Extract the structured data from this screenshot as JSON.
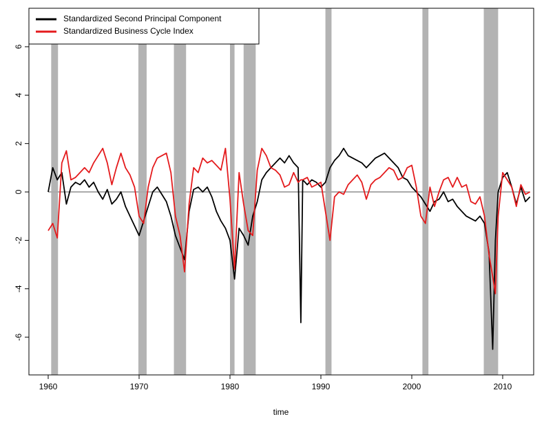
{
  "chart_data": {
    "type": "line",
    "xlabel": "time",
    "xlim": [
      1957.88,
      2013.41
    ],
    "xticks": [
      1960,
      1970,
      1980,
      1990,
      2000,
      2010
    ],
    "ylim": [
      -7.56,
      7.59
    ],
    "yticks": [
      -6,
      -4,
      -2,
      0,
      2,
      4,
      6
    ],
    "reference_line": 0,
    "shaded_periods": [
      [
        1960.33,
        1961.08
      ],
      [
        1969.92,
        1970.83
      ],
      [
        1973.83,
        1975.17
      ],
      [
        1980.0,
        1980.5
      ],
      [
        1981.5,
        1982.83
      ],
      [
        1990.5,
        1991.17
      ],
      [
        2001.17,
        2001.83
      ],
      [
        2007.92,
        2009.5
      ]
    ],
    "shade_color": "#b3b3b3",
    "legend": "top-left",
    "x": [
      1960,
      1960.5,
      1961,
      1961.5,
      1962,
      1962.5,
      1963,
      1963.5,
      1964,
      1964.5,
      1965,
      1965.5,
      1966,
      1966.5,
      1967,
      1967.5,
      1968,
      1968.5,
      1969,
      1969.5,
      1970,
      1970.5,
      1971,
      1971.5,
      1972,
      1972.5,
      1973,
      1973.5,
      1974,
      1974.5,
      1975,
      1975.5,
      1976,
      1976.5,
      1977,
      1977.5,
      1978,
      1978.5,
      1979,
      1979.5,
      1980,
      1980.5,
      1981,
      1981.5,
      1982,
      1982.5,
      1983,
      1983.5,
      1984,
      1984.5,
      1985,
      1985.5,
      1986,
      1986.5,
      1987,
      1987.5,
      1987.8,
      1988,
      1988.5,
      1989,
      1989.5,
      1990,
      1990.5,
      1991,
      1991.5,
      1992,
      1992.5,
      1993,
      1993.5,
      1994,
      1994.5,
      1995,
      1995.5,
      1996,
      1996.5,
      1997,
      1997.5,
      1998,
      1998.5,
      1999,
      1999.5,
      2000,
      2000.5,
      2001,
      2001.5,
      2002,
      2002.5,
      2003,
      2003.5,
      2004,
      2004.5,
      2005,
      2005.5,
      2006,
      2006.5,
      2007,
      2007.5,
      2008,
      2008.5,
      2008.9,
      2009.2,
      2009.5,
      2010,
      2010.5,
      2011,
      2011.5,
      2012,
      2012.5,
      2013
    ],
    "series": [
      {
        "name": "Standardized Second Principal Component",
        "color": "#000000",
        "values": [
          0.0,
          1.0,
          0.5,
          0.8,
          -0.5,
          0.2,
          0.4,
          0.3,
          0.5,
          0.2,
          0.4,
          0.0,
          -0.3,
          0.1,
          -0.5,
          -0.3,
          0.0,
          -0.6,
          -1.0,
          -1.4,
          -1.8,
          -1.2,
          -0.6,
          0.0,
          0.2,
          -0.1,
          -0.4,
          -1.0,
          -1.8,
          -2.3,
          -2.8,
          -0.8,
          0.1,
          0.2,
          0.0,
          0.2,
          -0.2,
          -0.8,
          -1.2,
          -1.5,
          -2.0,
          -3.6,
          -1.5,
          -1.8,
          -2.2,
          -1.0,
          -0.4,
          0.5,
          0.8,
          1.0,
          1.2,
          1.4,
          1.2,
          1.5,
          1.2,
          1.0,
          -5.4,
          0.5,
          0.3,
          0.5,
          0.4,
          0.2,
          0.4,
          1.0,
          1.3,
          1.5,
          1.8,
          1.5,
          1.4,
          1.3,
          1.2,
          1.0,
          1.2,
          1.4,
          1.5,
          1.6,
          1.4,
          1.2,
          1.0,
          0.6,
          0.5,
          0.2,
          0.0,
          -0.2,
          -0.5,
          -0.8,
          -0.4,
          -0.3,
          0.0,
          -0.4,
          -0.3,
          -0.6,
          -0.8,
          -1.0,
          -1.1,
          -1.2,
          -1.0,
          -1.3,
          -2.5,
          -6.5,
          -2.0,
          0.0,
          0.6,
          0.8,
          0.2,
          -0.5,
          0.2,
          -0.4,
          -0.2
        ]
      },
      {
        "name": "Standardized Business Cycle Index",
        "color": "#e41a1c",
        "values": [
          -1.6,
          -1.3,
          -1.9,
          1.2,
          1.7,
          0.5,
          0.6,
          0.8,
          1.0,
          0.8,
          1.2,
          1.5,
          1.8,
          1.2,
          0.3,
          1.0,
          1.6,
          1.0,
          0.7,
          0.2,
          -1.0,
          -1.3,
          0.2,
          1.0,
          1.4,
          1.5,
          1.6,
          0.8,
          -1.0,
          -1.8,
          -3.3,
          -0.5,
          1.0,
          0.8,
          1.4,
          1.2,
          1.3,
          1.1,
          0.9,
          1.8,
          -0.3,
          -3.2,
          0.8,
          -0.5,
          -1.6,
          -1.8,
          0.9,
          1.8,
          1.5,
          1.0,
          0.9,
          0.7,
          0.2,
          0.3,
          0.8,
          0.4,
          0.5,
          0.5,
          0.6,
          0.2,
          0.3,
          0.4,
          -0.8,
          -2.0,
          -0.2,
          0.0,
          -0.1,
          0.3,
          0.5,
          0.7,
          0.4,
          -0.3,
          0.3,
          0.5,
          0.6,
          0.8,
          1.0,
          0.9,
          0.5,
          0.6,
          1.0,
          1.1,
          0.2,
          -1.0,
          -1.3,
          0.2,
          -0.6,
          0.0,
          0.5,
          0.6,
          0.2,
          0.6,
          0.2,
          0.3,
          -0.4,
          -0.5,
          -0.2,
          -1.0,
          -2.6,
          -3.5,
          -4.2,
          -1.0,
          0.8,
          0.5,
          0.2,
          -0.6,
          0.3,
          -0.1,
          0.0
        ]
      }
    ]
  }
}
